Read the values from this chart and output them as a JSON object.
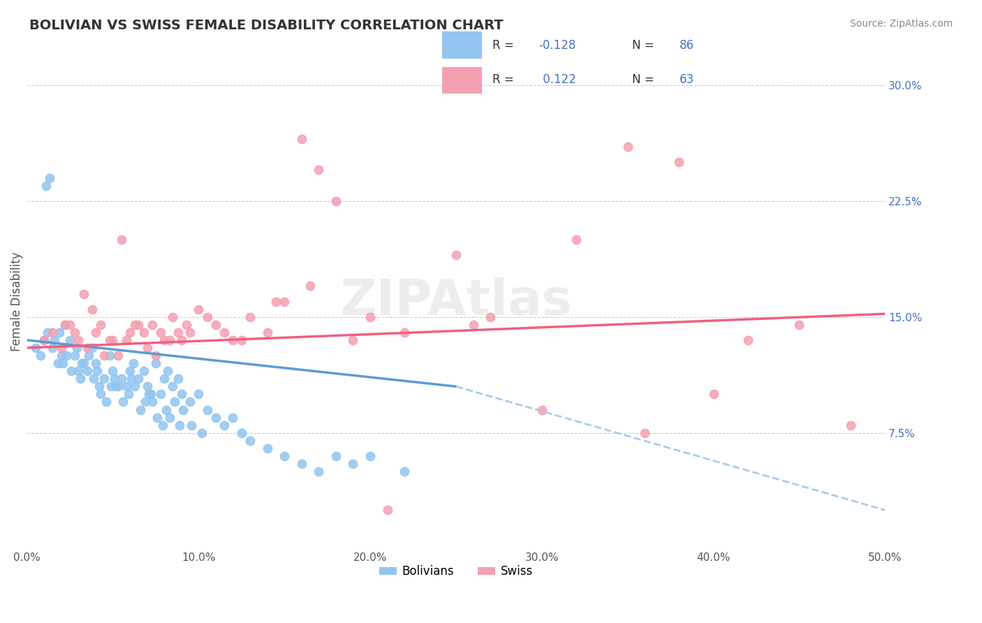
{
  "title": "BOLIVIAN VS SWISS FEMALE DISABILITY CORRELATION CHART",
  "source": "Source: ZipAtlas.com",
  "xlabel_ticks": [
    "0.0%",
    "50.0%"
  ],
  "ylabel_ticks": [
    "7.5%",
    "15.0%",
    "22.5%",
    "30.0%"
  ],
  "xlim": [
    0.0,
    50.0
  ],
  "ylim": [
    0.0,
    32.0
  ],
  "legend_r1": "R = -0.128   N = 86",
  "legend_r2": "R =  0.122   N = 63",
  "bolivians_color": "#92C5F0",
  "swiss_color": "#F4A0B0",
  "blue_line_color": "#5B9BD5",
  "pink_line_color": "#F06080",
  "dashed_line_color": "#AACCEE",
  "background_color": "#FFFFFF",
  "bolivians_x": [
    0.5,
    0.8,
    1.0,
    1.2,
    1.5,
    1.8,
    2.0,
    2.2,
    2.5,
    2.8,
    3.0,
    3.2,
    3.5,
    3.8,
    4.0,
    4.2,
    4.5,
    4.8,
    5.0,
    5.2,
    5.5,
    5.8,
    6.0,
    6.2,
    6.5,
    6.8,
    7.0,
    7.2,
    7.5,
    7.8,
    8.0,
    8.2,
    8.5,
    8.8,
    9.0,
    9.5,
    10.0,
    10.5,
    11.0,
    11.5,
    12.0,
    12.5,
    13.0,
    14.0,
    15.0,
    16.0,
    17.0,
    18.0,
    19.0,
    20.0,
    22.0,
    1.1,
    1.3,
    1.6,
    1.9,
    2.1,
    2.3,
    2.6,
    2.9,
    3.1,
    3.3,
    3.6,
    3.9,
    4.1,
    4.3,
    4.6,
    4.9,
    5.1,
    5.3,
    5.6,
    5.9,
    6.1,
    6.3,
    6.6,
    6.9,
    7.1,
    7.3,
    7.6,
    7.9,
    8.1,
    8.3,
    8.6,
    8.9,
    9.1,
    9.6,
    10.2
  ],
  "bolivians_y": [
    13.0,
    12.5,
    13.5,
    14.0,
    13.0,
    12.0,
    12.5,
    14.5,
    13.5,
    12.5,
    11.5,
    12.0,
    11.5,
    13.0,
    12.0,
    10.5,
    11.0,
    12.5,
    11.5,
    10.5,
    11.0,
    10.5,
    11.5,
    12.0,
    11.0,
    11.5,
    10.5,
    10.0,
    12.0,
    10.0,
    11.0,
    11.5,
    10.5,
    11.0,
    10.0,
    9.5,
    10.0,
    9.0,
    8.5,
    8.0,
    8.5,
    7.5,
    7.0,
    6.5,
    6.0,
    5.5,
    5.0,
    6.0,
    5.5,
    6.0,
    5.0,
    23.5,
    24.0,
    13.5,
    14.0,
    12.0,
    12.5,
    11.5,
    13.0,
    11.0,
    12.0,
    12.5,
    11.0,
    11.5,
    10.0,
    9.5,
    10.5,
    11.0,
    10.5,
    9.5,
    10.0,
    11.0,
    10.5,
    9.0,
    9.5,
    10.0,
    9.5,
    8.5,
    8.0,
    9.0,
    8.5,
    9.5,
    8.0,
    9.0,
    8.0,
    7.5
  ],
  "swiss_x": [
    1.0,
    1.5,
    2.0,
    2.5,
    3.0,
    3.5,
    4.0,
    4.5,
    5.0,
    5.5,
    6.0,
    6.5,
    7.0,
    7.5,
    8.0,
    8.5,
    9.0,
    9.5,
    10.0,
    11.0,
    12.0,
    13.0,
    14.0,
    15.0,
    16.0,
    17.0,
    18.0,
    19.0,
    20.0,
    22.0,
    25.0,
    27.0,
    30.0,
    35.0,
    38.0,
    40.0,
    42.0,
    45.0,
    48.0,
    2.2,
    2.8,
    3.3,
    3.8,
    4.3,
    4.8,
    5.3,
    5.8,
    6.3,
    6.8,
    7.3,
    7.8,
    8.3,
    8.8,
    9.3,
    10.5,
    11.5,
    12.5,
    14.5,
    16.5,
    21.0,
    26.0,
    32.0,
    36.0
  ],
  "swiss_y": [
    13.5,
    14.0,
    13.0,
    14.5,
    13.5,
    13.0,
    14.0,
    12.5,
    13.5,
    20.0,
    14.0,
    14.5,
    13.0,
    12.5,
    13.5,
    15.0,
    13.5,
    14.0,
    15.5,
    14.5,
    13.5,
    15.0,
    14.0,
    16.0,
    26.5,
    24.5,
    22.5,
    13.5,
    15.0,
    14.0,
    19.0,
    15.0,
    9.0,
    26.0,
    25.0,
    10.0,
    13.5,
    14.5,
    8.0,
    14.5,
    14.0,
    16.5,
    15.5,
    14.5,
    13.5,
    12.5,
    13.5,
    14.5,
    14.0,
    14.5,
    14.0,
    13.5,
    14.0,
    14.5,
    15.0,
    14.0,
    13.5,
    16.0,
    17.0,
    2.5,
    14.5,
    20.0,
    7.5
  ],
  "blue_trend_x1": 0.0,
  "blue_trend_y1": 13.5,
  "blue_trend_x2": 25.0,
  "blue_trend_y2": 10.5,
  "pink_trend_x1": 0.0,
  "pink_trend_y1": 13.0,
  "pink_trend_x2": 50.0,
  "pink_trend_y2": 15.2,
  "dashed_x1": 25.0,
  "dashed_y1": 10.5,
  "dashed_x2": 50.0,
  "dashed_y2": 2.5
}
